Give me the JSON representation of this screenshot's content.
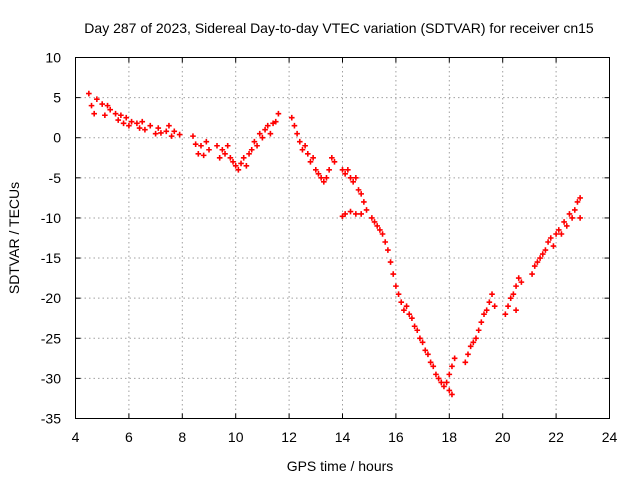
{
  "chart_data": {
    "type": "scatter",
    "title": "Day 287 of 2023, Sidereal Day-to-day VTEC variation (SDTVAR) for receiver cn15",
    "xlabel": "GPS time / hours",
    "ylabel": "SDTVAR / TECUs",
    "xlim": [
      4,
      24
    ],
    "ylim": [
      -35,
      10
    ],
    "xticks": [
      "4",
      "6",
      "8",
      "10",
      "12",
      "14",
      "16",
      "18",
      "20",
      "22",
      "24"
    ],
    "yticks": [
      "10",
      "5",
      "0",
      "-5",
      "-10",
      "-15",
      "-20",
      "-25",
      "-30",
      "-35"
    ],
    "grid": true,
    "marker": "plus",
    "series_color": "#ff0000",
    "series": [
      {
        "name": "SDTVAR",
        "points": [
          [
            4.5,
            5.5
          ],
          [
            4.6,
            4.0
          ],
          [
            4.7,
            3.0
          ],
          [
            4.8,
            4.8
          ],
          [
            5.0,
            4.2
          ],
          [
            5.1,
            2.8
          ],
          [
            5.2,
            4.0
          ],
          [
            5.3,
            3.5
          ],
          [
            5.5,
            3.0
          ],
          [
            5.6,
            2.2
          ],
          [
            5.7,
            2.8
          ],
          [
            5.8,
            1.8
          ],
          [
            5.9,
            2.5
          ],
          [
            6.0,
            1.5
          ],
          [
            6.1,
            2.0
          ],
          [
            6.3,
            1.8
          ],
          [
            6.4,
            1.2
          ],
          [
            6.5,
            2.0
          ],
          [
            6.6,
            1.0
          ],
          [
            6.8,
            1.5
          ],
          [
            7.0,
            0.5
          ],
          [
            7.1,
            1.2
          ],
          [
            7.2,
            0.6
          ],
          [
            7.4,
            0.8
          ],
          [
            7.5,
            1.5
          ],
          [
            7.6,
            0.2
          ],
          [
            7.7,
            0.8
          ],
          [
            7.9,
            0.4
          ],
          [
            8.4,
            0.2
          ],
          [
            8.5,
            -0.8
          ],
          [
            8.6,
            -2.0
          ],
          [
            8.7,
            -1.0
          ],
          [
            8.8,
            -2.2
          ],
          [
            8.9,
            -0.5
          ],
          [
            9.0,
            -1.5
          ],
          [
            9.3,
            -1.0
          ],
          [
            9.4,
            -2.5
          ],
          [
            9.5,
            -1.5
          ],
          [
            9.6,
            -2.0
          ],
          [
            9.7,
            -1.0
          ],
          [
            9.8,
            -2.5
          ],
          [
            9.9,
            -3.0
          ],
          [
            10.0,
            -3.5
          ],
          [
            10.1,
            -4.0
          ],
          [
            10.2,
            -3.2
          ],
          [
            10.3,
            -2.5
          ],
          [
            10.4,
            -3.5
          ],
          [
            10.5,
            -2.0
          ],
          [
            10.6,
            -1.5
          ],
          [
            10.7,
            -0.5
          ],
          [
            10.8,
            -1.0
          ],
          [
            10.9,
            0.5
          ],
          [
            11.0,
            0.0
          ],
          [
            11.1,
            1.0
          ],
          [
            11.2,
            1.5
          ],
          [
            11.3,
            0.5
          ],
          [
            11.4,
            1.8
          ],
          [
            11.5,
            2.0
          ],
          [
            11.6,
            3.0
          ],
          [
            12.1,
            2.5
          ],
          [
            12.2,
            1.5
          ],
          [
            12.3,
            0.5
          ],
          [
            12.4,
            -0.5
          ],
          [
            12.5,
            -1.5
          ],
          [
            12.6,
            -1.0
          ],
          [
            12.7,
            -2.0
          ],
          [
            12.8,
            -3.0
          ],
          [
            12.9,
            -2.5
          ],
          [
            13.0,
            -4.0
          ],
          [
            13.1,
            -4.5
          ],
          [
            13.2,
            -5.0
          ],
          [
            13.3,
            -5.5
          ],
          [
            13.4,
            -5.0
          ],
          [
            13.5,
            -4.0
          ],
          [
            13.6,
            -2.5
          ],
          [
            13.7,
            -3.0
          ],
          [
            14.0,
            -4.0
          ],
          [
            14.1,
            -4.5
          ],
          [
            14.2,
            -4.0
          ],
          [
            14.3,
            -5.0
          ],
          [
            14.4,
            -5.5
          ],
          [
            14.5,
            -5.0
          ],
          [
            14.6,
            -6.5
          ],
          [
            14.7,
            -7.0
          ],
          [
            14.8,
            -8.0
          ],
          [
            14.9,
            -9.0
          ],
          [
            14.0,
            -9.8
          ],
          [
            14.1,
            -9.5
          ],
          [
            14.3,
            -9.2
          ],
          [
            14.5,
            -9.5
          ],
          [
            14.7,
            -9.5
          ],
          [
            15.1,
            -10.0
          ],
          [
            15.2,
            -10.5
          ],
          [
            15.3,
            -11.0
          ],
          [
            15.4,
            -11.5
          ],
          [
            15.5,
            -12.0
          ],
          [
            15.6,
            -13.0
          ],
          [
            15.7,
            -14.0
          ],
          [
            15.8,
            -15.5
          ],
          [
            15.9,
            -17.0
          ],
          [
            16.0,
            -18.5
          ],
          [
            16.1,
            -19.5
          ],
          [
            16.2,
            -20.5
          ],
          [
            16.3,
            -21.5
          ],
          [
            16.4,
            -21.0
          ],
          [
            16.5,
            -22.0
          ],
          [
            16.6,
            -22.5
          ],
          [
            16.7,
            -23.5
          ],
          [
            16.8,
            -24.0
          ],
          [
            16.9,
            -25.0
          ],
          [
            17.0,
            -25.5
          ],
          [
            17.1,
            -26.5
          ],
          [
            17.2,
            -27.0
          ],
          [
            17.3,
            -28.0
          ],
          [
            17.4,
            -28.5
          ],
          [
            17.5,
            -29.5
          ],
          [
            17.6,
            -30.0
          ],
          [
            17.7,
            -30.5
          ],
          [
            17.8,
            -31.0
          ],
          [
            17.9,
            -30.5
          ],
          [
            18.0,
            -31.5
          ],
          [
            18.1,
            -32.0
          ],
          [
            18.0,
            -29.5
          ],
          [
            18.1,
            -28.5
          ],
          [
            18.2,
            -27.5
          ],
          [
            18.6,
            -28.0
          ],
          [
            18.7,
            -27.0
          ],
          [
            18.8,
            -26.0
          ],
          [
            18.9,
            -25.5
          ],
          [
            19.0,
            -25.0
          ],
          [
            19.1,
            -24.0
          ],
          [
            19.2,
            -23.0
          ],
          [
            19.3,
            -22.0
          ],
          [
            19.4,
            -21.5
          ],
          [
            19.5,
            -20.5
          ],
          [
            19.6,
            -19.5
          ],
          [
            19.7,
            -21.0
          ],
          [
            20.1,
            -22.0
          ],
          [
            20.2,
            -21.0
          ],
          [
            20.3,
            -20.0
          ],
          [
            20.4,
            -19.5
          ],
          [
            20.5,
            -18.5
          ],
          [
            20.6,
            -17.5
          ],
          [
            20.7,
            -18.0
          ],
          [
            20.5,
            -21.5
          ],
          [
            21.1,
            -17.0
          ],
          [
            21.2,
            -16.0
          ],
          [
            21.3,
            -15.5
          ],
          [
            21.4,
            -15.0
          ],
          [
            21.5,
            -14.5
          ],
          [
            21.6,
            -14.0
          ],
          [
            21.7,
            -13.0
          ],
          [
            21.8,
            -12.5
          ],
          [
            21.9,
            -13.5
          ],
          [
            22.0,
            -12.0
          ],
          [
            22.1,
            -11.5
          ],
          [
            22.2,
            -12.0
          ],
          [
            22.3,
            -10.5
          ],
          [
            22.4,
            -11.0
          ],
          [
            22.5,
            -9.5
          ],
          [
            22.6,
            -10.0
          ],
          [
            22.7,
            -9.0
          ],
          [
            22.8,
            -8.0
          ],
          [
            22.9,
            -7.5
          ],
          [
            22.9,
            -10.0
          ]
        ]
      }
    ]
  }
}
